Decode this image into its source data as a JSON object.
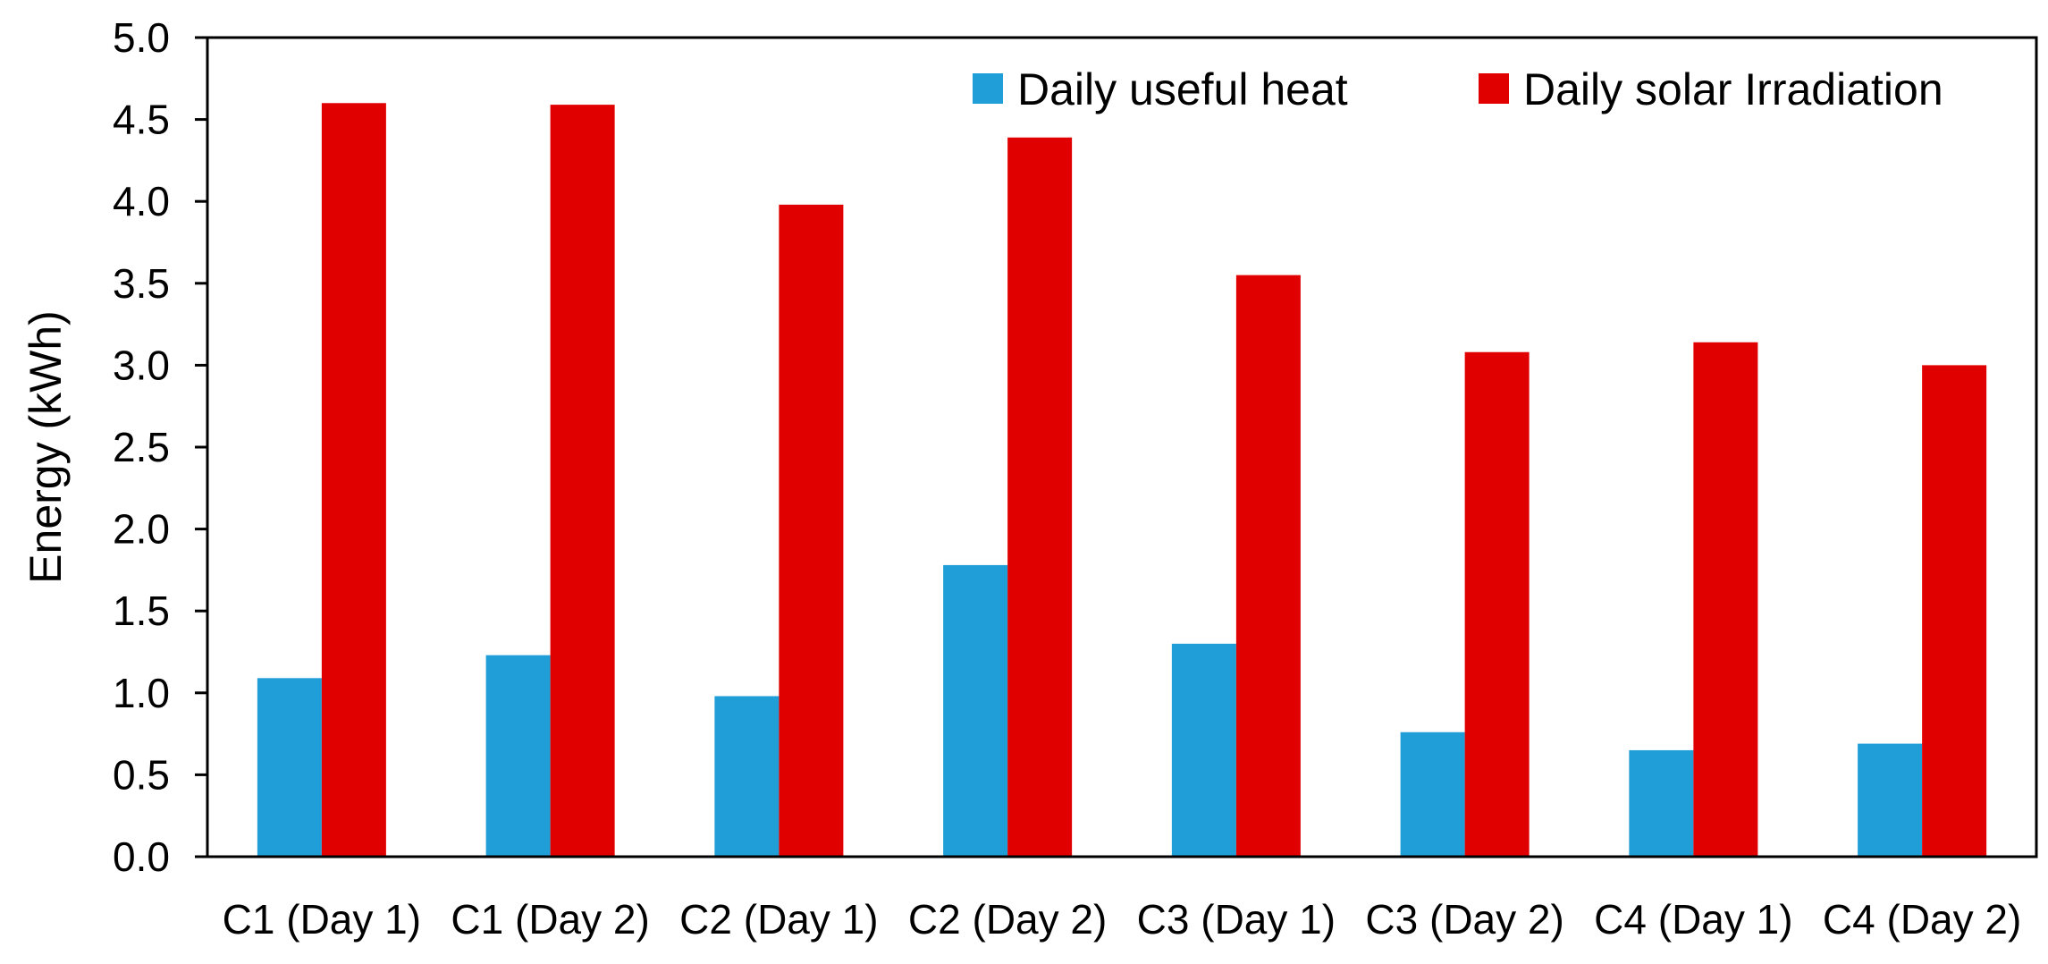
{
  "chart_data": {
    "type": "bar",
    "title": "",
    "xlabel": "",
    "ylabel": "Energy (kWh)",
    "ylim": [
      0,
      5.0
    ],
    "ytick_step": 0.5,
    "yticks": [
      "0.0",
      "0.5",
      "1.0",
      "1.5",
      "2.0",
      "2.5",
      "3.0",
      "3.5",
      "4.0",
      "4.5",
      "5.0"
    ],
    "grid": false,
    "legend_position": "top-right",
    "categories": [
      "C1 (Day 1)",
      "C1 (Day 2)",
      "C2 (Day 1)",
      "C2 (Day 2)",
      "C3 (Day 1)",
      "C3 (Day 2)",
      "C4 (Day 1)",
      "C4 (Day 2)"
    ],
    "series": [
      {
        "name": "Daily useful heat",
        "color": "#1f9ed8",
        "values": [
          1.09,
          1.23,
          0.98,
          1.78,
          1.3,
          0.76,
          0.65,
          0.69
        ]
      },
      {
        "name": "Daily solar Irradiation",
        "color": "#e00000",
        "values": [
          4.6,
          4.59,
          3.98,
          4.39,
          3.55,
          3.08,
          3.14,
          3.0
        ]
      }
    ]
  }
}
